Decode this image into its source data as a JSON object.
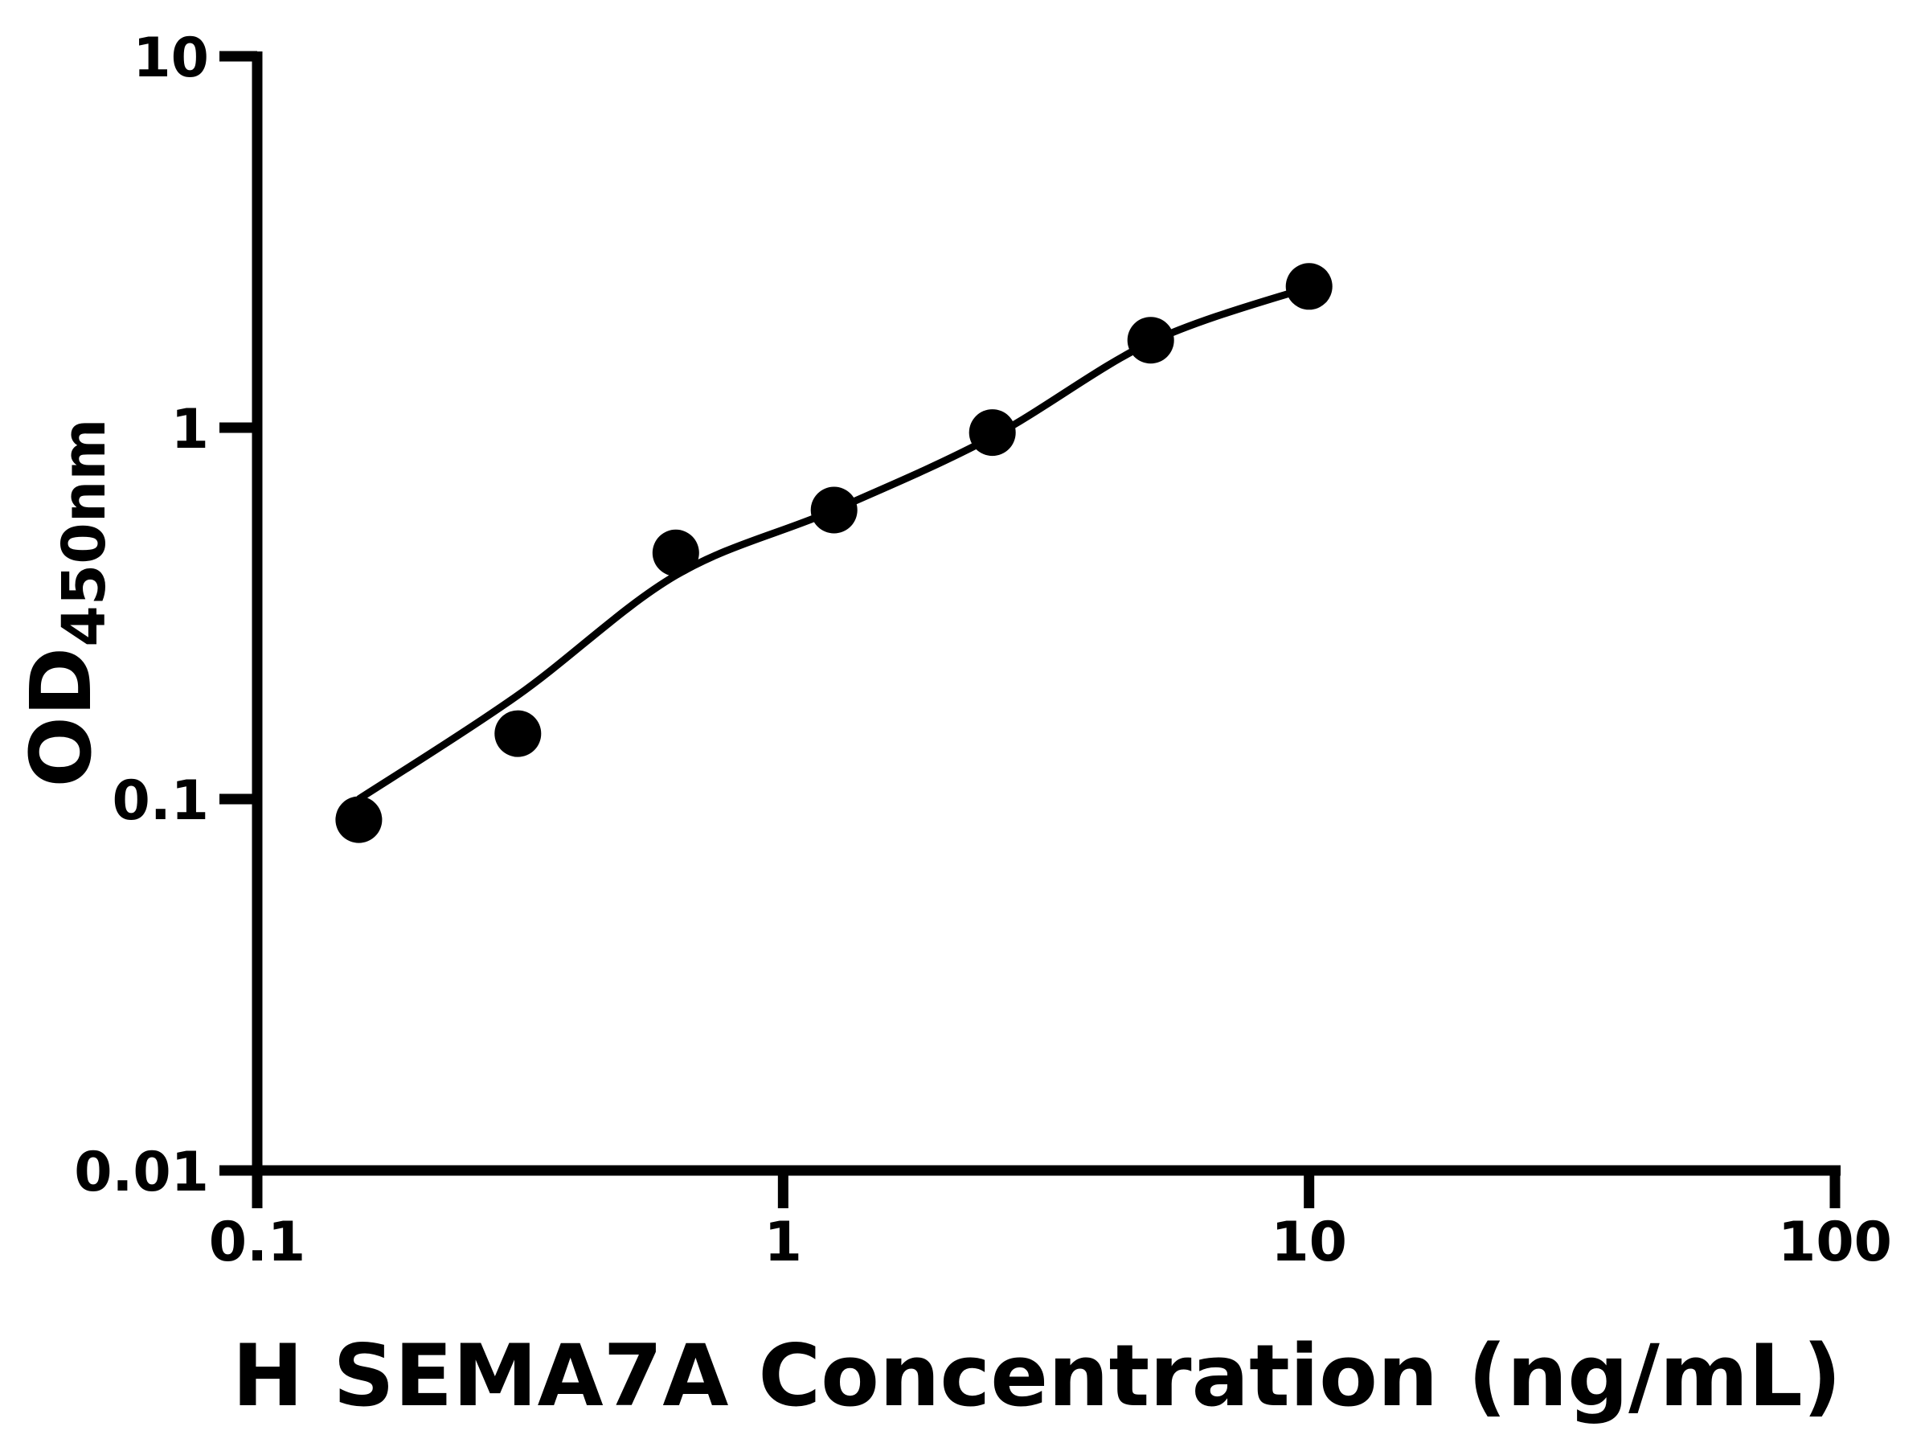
{
  "figure": {
    "background_color": "#ffffff",
    "ink_color": "#000000"
  },
  "chart_data": {
    "type": "scatter",
    "subtype": "log-log standard curve with fitted line",
    "title": "",
    "xlabel": "H SEMA7A Concentration (ng/mL)",
    "ylabel_main": "OD",
    "ylabel_sub": "450nm",
    "x_scale": "log",
    "y_scale": "log",
    "xlim": [
      0.1,
      100
    ],
    "ylim": [
      0.01,
      10
    ],
    "grid": "off",
    "legend": "none",
    "x_ticks": [
      {
        "value": 0.1,
        "label": "0.1"
      },
      {
        "value": 1,
        "label": "1"
      },
      {
        "value": 10,
        "label": "10"
      },
      {
        "value": 100,
        "label": "100"
      }
    ],
    "y_ticks": [
      {
        "value": 10,
        "label": "10"
      },
      {
        "value": 1,
        "label": "1"
      },
      {
        "value": 0.1,
        "label": "0.1"
      },
      {
        "value": 0.01,
        "label": "0.01"
      }
    ],
    "points": [
      {
        "concentration": 0.156,
        "od": 0.088
      },
      {
        "concentration": 0.313,
        "od": 0.15
      },
      {
        "concentration": 0.625,
        "od": 0.46
      },
      {
        "concentration": 1.25,
        "od": 0.6
      },
      {
        "concentration": 2.5,
        "od": 0.97
      },
      {
        "concentration": 5,
        "od": 1.72
      },
      {
        "concentration": 10,
        "od": 2.4
      }
    ],
    "fit_curve": [
      {
        "x": 0.156,
        "y": 0.1
      },
      {
        "x": 0.3125,
        "y": 0.19
      },
      {
        "x": 0.625,
        "y": 0.4
      },
      {
        "x": 1.25,
        "y": 0.6
      },
      {
        "x": 2.5,
        "y": 0.945
      },
      {
        "x": 5,
        "y": 1.7
      },
      {
        "x": 10,
        "y": 2.39
      }
    ],
    "marker": {
      "shape": "circle",
      "color": "#000000"
    },
    "line_color": "#000000"
  }
}
